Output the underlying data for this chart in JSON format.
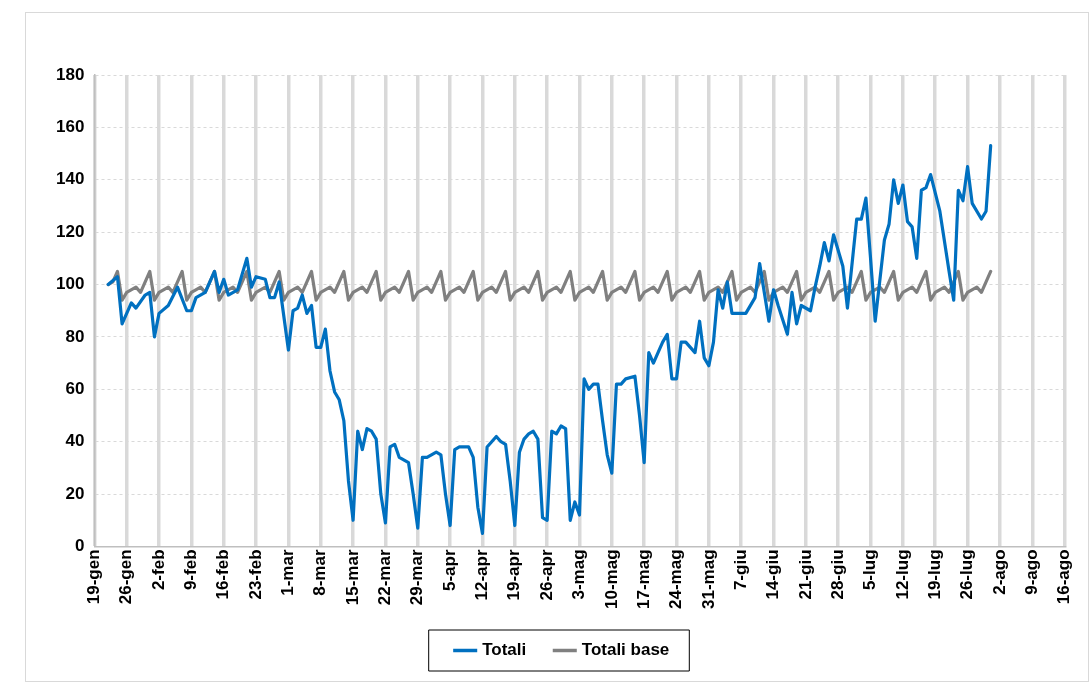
{
  "chart_data": {
    "type": "line",
    "ylim": [
      0,
      180
    ],
    "yticks": [
      0,
      20,
      40,
      60,
      80,
      100,
      120,
      140,
      160,
      180
    ],
    "xlim": [
      "--01-19",
      "--08-16"
    ],
    "xticks": [
      {
        "value": "--01-19",
        "label": "19-gen"
      },
      {
        "value": "--01-26",
        "label": "26-gen"
      },
      {
        "value": "--02-02",
        "label": "2-feb"
      },
      {
        "value": "--02-09",
        "label": "9-feb"
      },
      {
        "value": "--02-16",
        "label": "16-feb"
      },
      {
        "value": "--02-23",
        "label": "23-feb"
      },
      {
        "value": "--03-01",
        "label": "1-mar"
      },
      {
        "value": "--03-08",
        "label": "8-mar"
      },
      {
        "value": "--03-15",
        "label": "15-mar"
      },
      {
        "value": "--03-22",
        "label": "22-mar"
      },
      {
        "value": "--03-29",
        "label": "29-mar"
      },
      {
        "value": "--04-05",
        "label": "5-apr"
      },
      {
        "value": "--04-12",
        "label": "12-apr"
      },
      {
        "value": "--04-19",
        "label": "19-apr"
      },
      {
        "value": "--04-26",
        "label": "26-apr"
      },
      {
        "value": "--05-03",
        "label": "3-mag"
      },
      {
        "value": "--05-10",
        "label": "10-mag"
      },
      {
        "value": "--05-17",
        "label": "17-mag"
      },
      {
        "value": "--05-24",
        "label": "24-mag"
      },
      {
        "value": "--05-31",
        "label": "31-mag"
      },
      {
        "value": "--06-07",
        "label": "7-giu"
      },
      {
        "value": "--06-14",
        "label": "14-giu"
      },
      {
        "value": "--06-21",
        "label": "21-giu"
      },
      {
        "value": "--06-28",
        "label": "28-giu"
      },
      {
        "value": "--07-05",
        "label": "5-lug"
      },
      {
        "value": "--07-12",
        "label": "12-lug"
      },
      {
        "value": "--07-19",
        "label": "19-lug"
      },
      {
        "value": "--07-26",
        "label": "26-lug"
      },
      {
        "value": "--08-02",
        "label": "2-ago"
      },
      {
        "value": "--08-09",
        "label": "9-ago"
      },
      {
        "value": "--08-16",
        "label": "16-ago"
      }
    ],
    "grid": true,
    "legend": "bottom",
    "line_style": "solid",
    "marker": "none",
    "series": [
      {
        "name": "Totali",
        "color": "#0070c0",
        "x": [
          "--01-22",
          "--01-24",
          "--01-25",
          "--01-27",
          "--01-28",
          "--01-30",
          "--01-31",
          "--02-01",
          "--02-02",
          "--02-04",
          "--02-06",
          "--02-08",
          "--02-09",
          "--02-10",
          "--02-12",
          "--02-14",
          "--02-15",
          "--02-16",
          "--02-17",
          "--02-19",
          "--02-21",
          "--02-22",
          "--02-23",
          "--02-25",
          "--02-26",
          "--02-27",
          "--02-28",
          "--03-01",
          "--03-02",
          "--03-03",
          "--03-04",
          "--03-05",
          "--03-06",
          "--03-07",
          "--03-08",
          "--03-09",
          "--03-10",
          "--03-11",
          "--03-12",
          "--03-13",
          "--03-14",
          "--03-15",
          "--03-16",
          "--03-17",
          "--03-18",
          "--03-19",
          "--03-20",
          "--03-21",
          "--03-22",
          "--03-23",
          "--03-24",
          "--03-25",
          "--03-27",
          "--03-28",
          "--03-29",
          "--03-30",
          "--03-31",
          "--04-02",
          "--04-03",
          "--04-04",
          "--04-05",
          "--04-06",
          "--04-07",
          "--04-09",
          "--04-10",
          "--04-11",
          "--04-12",
          "--04-13",
          "--04-14",
          "--04-15",
          "--04-16",
          "--04-17",
          "--04-18",
          "--04-19",
          "--04-20",
          "--04-21",
          "--04-22",
          "--04-23",
          "--04-24",
          "--04-25",
          "--04-26",
          "--04-27",
          "--04-28",
          "--04-29",
          "--04-30",
          "--05-01",
          "--05-02",
          "--05-03",
          "--05-04",
          "--05-05",
          "--05-06",
          "--05-07",
          "--05-08",
          "--05-09",
          "--05-10",
          "--05-11",
          "--05-12",
          "--05-13",
          "--05-15",
          "--05-16",
          "--05-17",
          "--05-18",
          "--05-19",
          "--05-20",
          "--05-21",
          "--05-22",
          "--05-23",
          "--05-24",
          "--05-25",
          "--05-26",
          "--05-27",
          "--05-28",
          "--05-29",
          "--05-30",
          "--05-31",
          "--06-01",
          "--06-02",
          "--06-03",
          "--06-04",
          "--06-05",
          "--06-07",
          "--06-08",
          "--06-10",
          "--06-11",
          "--06-13",
          "--06-14",
          "--06-15",
          "--06-17",
          "--06-18",
          "--06-19",
          "--06-20",
          "--06-22",
          "--06-23",
          "--06-24",
          "--06-25",
          "--06-26",
          "--06-27",
          "--06-29",
          "--06-30",
          "--07-02",
          "--07-03",
          "--07-04",
          "--07-05",
          "--07-06",
          "--07-08",
          "--07-09",
          "--07-10",
          "--07-11",
          "--07-12",
          "--07-13",
          "--07-14",
          "--07-15",
          "--07-16",
          "--07-17",
          "--07-18",
          "--07-20",
          "--07-22",
          "--07-23",
          "--07-24",
          "--07-25",
          "--07-26",
          "--07-27",
          "--07-29",
          "--07-30",
          "--07-31"
        ],
        "values": [
          100,
          103,
          85,
          93,
          91,
          96,
          97,
          80,
          89,
          92,
          99,
          90,
          90,
          95,
          97,
          105,
          97,
          102,
          96,
          98,
          110,
          99,
          103,
          102,
          95,
          95,
          101,
          75,
          90,
          91,
          96,
          89,
          92,
          76,
          76,
          83,
          67,
          59,
          56,
          48,
          25,
          10,
          44,
          37,
          45,
          44,
          41,
          20,
          9,
          38,
          39,
          34,
          32,
          20,
          7,
          34,
          34,
          36,
          35,
          20,
          8,
          37,
          38,
          38,
          34,
          15,
          5,
          38,
          40,
          42,
          40,
          39,
          25,
          8,
          36,
          41,
          43,
          44,
          41,
          11,
          10,
          44,
          43,
          46,
          45,
          10,
          17,
          12,
          64,
          60,
          62,
          62,
          48,
          35,
          28,
          62,
          62,
          64,
          65,
          50,
          32,
          74,
          70,
          74,
          78,
          81,
          64,
          64,
          78,
          78,
          76,
          74,
          86,
          72,
          69,
          78,
          98,
          91,
          101,
          89,
          89,
          89,
          95,
          108,
          86,
          98,
          92,
          81,
          97,
          85,
          92,
          90,
          99,
          107,
          116,
          109,
          119,
          107,
          91,
          125,
          125,
          133,
          110,
          86,
          117,
          123,
          140,
          131,
          138,
          124,
          122,
          110,
          136,
          137,
          142,
          128,
          105,
          94,
          136,
          132,
          145,
          131,
          125,
          128,
          153
        ]
      },
      {
        "name": "Totali base",
        "color": "#808080",
        "x": [
          "--01-22",
          "--01-23",
          "--01-24",
          "--01-25",
          "--01-26",
          "--01-28",
          "--01-29",
          "--01-30",
          "--01-31",
          "--02-01",
          "--02-02",
          "--02-04",
          "--02-05",
          "--02-06",
          "--02-07",
          "--02-08",
          "--02-09",
          "--02-11",
          "--02-12",
          "--02-13",
          "--02-14",
          "--02-15",
          "--02-16",
          "--02-18",
          "--02-19",
          "--02-20",
          "--02-21",
          "--02-22",
          "--02-23",
          "--02-25",
          "--02-26",
          "--02-27",
          "--02-28",
          "--02-29",
          "--03-01",
          "--03-03",
          "--03-04",
          "--03-05",
          "--03-06",
          "--03-07",
          "--03-08",
          "--03-10",
          "--03-11",
          "--03-12",
          "--03-13",
          "--03-14",
          "--03-15",
          "--03-17",
          "--03-18",
          "--03-19",
          "--03-20",
          "--03-21",
          "--03-22",
          "--03-24",
          "--03-25",
          "--03-26",
          "--03-27",
          "--03-28",
          "--03-29",
          "--03-31",
          "--04-01",
          "--04-02",
          "--04-03",
          "--04-04",
          "--04-05",
          "--04-07",
          "--04-08",
          "--04-09",
          "--04-10",
          "--04-11",
          "--04-12",
          "--04-14",
          "--04-15",
          "--04-16",
          "--04-17",
          "--04-18",
          "--04-19",
          "--04-21",
          "--04-22",
          "--04-23",
          "--04-24",
          "--04-25",
          "--04-26",
          "--04-28",
          "--04-29",
          "--04-30",
          "--05-01",
          "--05-02",
          "--05-03",
          "--05-05",
          "--05-06",
          "--05-07",
          "--05-08",
          "--05-09",
          "--05-10",
          "--05-12",
          "--05-13",
          "--05-14",
          "--05-15",
          "--05-16",
          "--05-17",
          "--05-19",
          "--05-20",
          "--05-21",
          "--05-22",
          "--05-23",
          "--05-24",
          "--05-26",
          "--05-27",
          "--05-28",
          "--05-29",
          "--05-30",
          "--05-31",
          "--06-02",
          "--06-03",
          "--06-04",
          "--06-05",
          "--06-06",
          "--06-07",
          "--06-09",
          "--06-10",
          "--06-11",
          "--06-12",
          "--06-13",
          "--06-14",
          "--06-16",
          "--06-17",
          "--06-18",
          "--06-19",
          "--06-20",
          "--06-21",
          "--06-23",
          "--06-24",
          "--06-25",
          "--06-26",
          "--06-27",
          "--06-28",
          "--06-30",
          "--07-01",
          "--07-02",
          "--07-03",
          "--07-04",
          "--07-05",
          "--07-07",
          "--07-08",
          "--07-09",
          "--07-10",
          "--07-11",
          "--07-12",
          "--07-14",
          "--07-15",
          "--07-16",
          "--07-17",
          "--07-18",
          "--07-19",
          "--07-21",
          "--07-22",
          "--07-23",
          "--07-24",
          "--07-25",
          "--07-26",
          "--07-28",
          "--07-29",
          "--07-30",
          "--07-31"
        ],
        "values": [
          100,
          101,
          105,
          94,
          97,
          99,
          97,
          101,
          105,
          94,
          97,
          99,
          97,
          101,
          105,
          94,
          97,
          99,
          97,
          101,
          105,
          94,
          97,
          99,
          97,
          101,
          105,
          94,
          97,
          99,
          97,
          101,
          105,
          94,
          97,
          99,
          97,
          101,
          105,
          94,
          97,
          99,
          97,
          101,
          105,
          94,
          97,
          99,
          97,
          101,
          105,
          94,
          97,
          99,
          97,
          101,
          105,
          94,
          97,
          99,
          97,
          101,
          105,
          94,
          97,
          99,
          97,
          101,
          105,
          94,
          97,
          99,
          97,
          101,
          105,
          94,
          97,
          99,
          97,
          101,
          105,
          94,
          97,
          99,
          97,
          101,
          105,
          94,
          97,
          99,
          97,
          101,
          105,
          94,
          97,
          99,
          97,
          101,
          105,
          94,
          97,
          99,
          97,
          101,
          105,
          94,
          97,
          99,
          97,
          101,
          105,
          94,
          97,
          99,
          97,
          101,
          105,
          94,
          97,
          99,
          97,
          101,
          105,
          94,
          97,
          99,
          97,
          101,
          105,
          94,
          97,
          99,
          97,
          101,
          105,
          94,
          97,
          99,
          97,
          101,
          105,
          94,
          97,
          99,
          97,
          101,
          105,
          94,
          97,
          99,
          97,
          101,
          105,
          94,
          97,
          99,
          97,
          101,
          105,
          94,
          97,
          99,
          97,
          101,
          105
        ]
      }
    ]
  }
}
